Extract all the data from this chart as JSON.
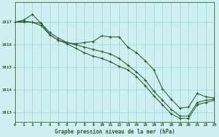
{
  "title": "Graphe pression niveau de la mer (hPa)",
  "background_color": "#cff0f0",
  "grid_color": "#a0d8d8",
  "line_color": "#2d5a2d",
  "xlim": [
    0,
    23
  ],
  "ylim": [
    1012.6,
    1017.9
  ],
  "yticks": [
    1013,
    1014,
    1015,
    1016,
    1017
  ],
  "xticks": [
    0,
    1,
    2,
    3,
    4,
    5,
    6,
    7,
    8,
    9,
    10,
    11,
    12,
    13,
    14,
    15,
    16,
    17,
    18,
    19,
    20,
    21,
    22,
    23
  ],
  "series": [
    [
      1017.0,
      1017.1,
      1017.35,
      1016.95,
      1016.45,
      1016.2,
      1016.1,
      1016.05,
      1016.1,
      1016.15,
      1016.4,
      1016.35,
      1016.35,
      1015.9,
      1015.65,
      1015.3,
      1014.9,
      1014.05,
      1013.6,
      1013.2,
      1013.25,
      1013.85,
      1013.7,
      1013.65
    ],
    [
      1017.0,
      1017.05,
      1017.0,
      1016.95,
      1016.55,
      1016.3,
      1016.1,
      1016.0,
      1015.9,
      1015.8,
      1015.7,
      1015.6,
      1015.4,
      1015.1,
      1014.8,
      1014.45,
      1013.95,
      1013.55,
      1013.15,
      1012.85,
      1012.85,
      1013.45,
      1013.55,
      1013.6
    ],
    [
      1017.0,
      1017.0,
      1017.0,
      1016.85,
      1016.45,
      1016.2,
      1016.05,
      1015.85,
      1015.65,
      1015.5,
      1015.4,
      1015.25,
      1015.05,
      1014.9,
      1014.6,
      1014.2,
      1013.75,
      1013.35,
      1012.95,
      1012.75,
      1012.75,
      1013.35,
      1013.45,
      1013.55
    ]
  ]
}
